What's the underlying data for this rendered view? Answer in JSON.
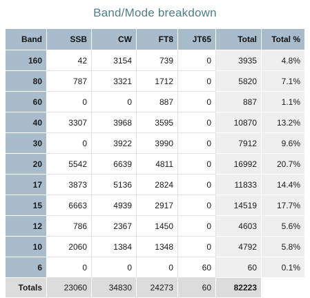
{
  "title": "Band/Mode breakdown",
  "columns": [
    "Band",
    "SSB",
    "CW",
    "FT8",
    "JT65",
    "Total",
    "Total %"
  ],
  "rows": [
    {
      "band": "160",
      "ssb": "42",
      "cw": "3154",
      "ft8": "739",
      "jt65": "0",
      "total": "3935",
      "pct": "4.8%"
    },
    {
      "band": "80",
      "ssb": "787",
      "cw": "3321",
      "ft8": "1712",
      "jt65": "0",
      "total": "5820",
      "pct": "7.1%"
    },
    {
      "band": "60",
      "ssb": "0",
      "cw": "0",
      "ft8": "887",
      "jt65": "0",
      "total": "887",
      "pct": "1.1%"
    },
    {
      "band": "40",
      "ssb": "3307",
      "cw": "3968",
      "ft8": "3595",
      "jt65": "0",
      "total": "10870",
      "pct": "13.2%"
    },
    {
      "band": "30",
      "ssb": "0",
      "cw": "3922",
      "ft8": "3990",
      "jt65": "0",
      "total": "7912",
      "pct": "9.6%"
    },
    {
      "band": "20",
      "ssb": "5542",
      "cw": "6639",
      "ft8": "4811",
      "jt65": "0",
      "total": "16992",
      "pct": "20.7%"
    },
    {
      "band": "17",
      "ssb": "3873",
      "cw": "5136",
      "ft8": "2824",
      "jt65": "0",
      "total": "11833",
      "pct": "14.4%"
    },
    {
      "band": "15",
      "ssb": "6663",
      "cw": "4939",
      "ft8": "2917",
      "jt65": "0",
      "total": "14519",
      "pct": "17.7%"
    },
    {
      "band": "12",
      "ssb": "786",
      "cw": "2367",
      "ft8": "1450",
      "jt65": "0",
      "total": "4603",
      "pct": "5.6%"
    },
    {
      "band": "10",
      "ssb": "2060",
      "cw": "1384",
      "ft8": "1348",
      "jt65": "0",
      "total": "4792",
      "pct": "5.8%"
    },
    {
      "band": "6",
      "ssb": "0",
      "cw": "0",
      "ft8": "0",
      "jt65": "60",
      "total": "60",
      "pct": "0.1%"
    }
  ],
  "totals": {
    "label": "Totals",
    "ssb": "23060",
    "cw": "34830",
    "ft8": "24273",
    "jt65": "60",
    "total": "82223"
  },
  "colors": {
    "title": "#4d7f86",
    "header_bg": "#a8bccb",
    "total_col_bg": "#efefef",
    "totals_row_bg": "#dcdcdc"
  }
}
